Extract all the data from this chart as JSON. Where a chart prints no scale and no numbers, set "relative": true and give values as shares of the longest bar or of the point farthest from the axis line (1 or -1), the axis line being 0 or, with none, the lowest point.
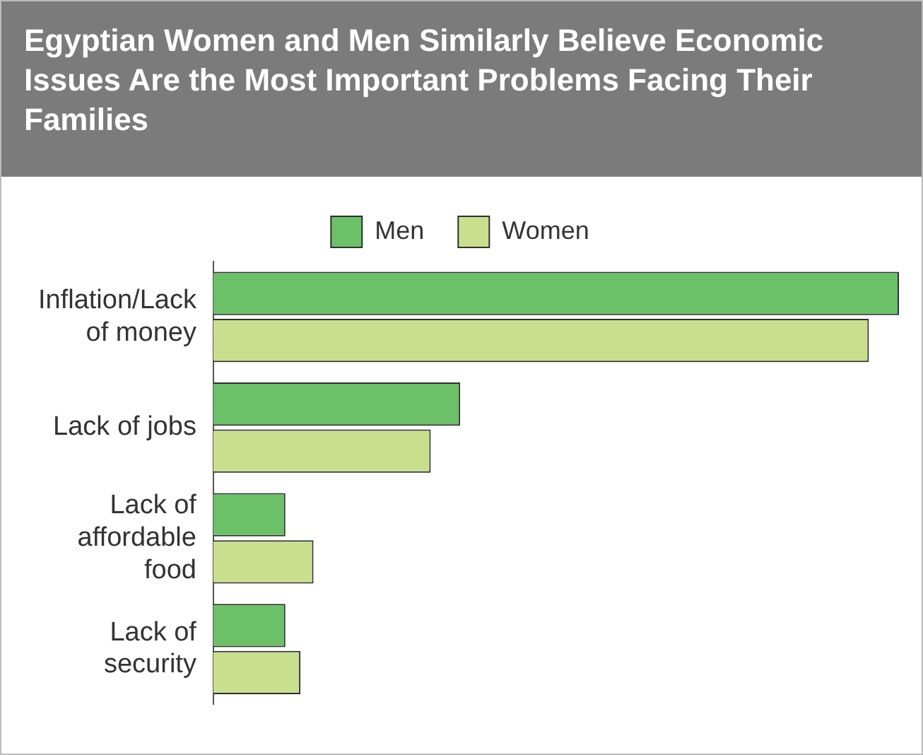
{
  "chart_data": {
    "type": "bar",
    "orientation": "horizontal",
    "relative": true,
    "title": "Egyptian Women and Men Similarly Believe Economic Issues Are the Most Important Problems Facing Their Families",
    "categories": [
      "Inflation/Lack of money",
      "Lack of jobs",
      "Lack of affordable food",
      "Lack of security"
    ],
    "legend": "top",
    "series": [
      {
        "name": "Men",
        "color": "#6cc067",
        "values": [
          1,
          0.36,
          0.105,
          0.105
        ]
      },
      {
        "name": "Women",
        "color": "#cadf8e",
        "values": [
          0.956,
          0.317,
          0.146,
          0.127
        ]
      }
    ]
  }
}
